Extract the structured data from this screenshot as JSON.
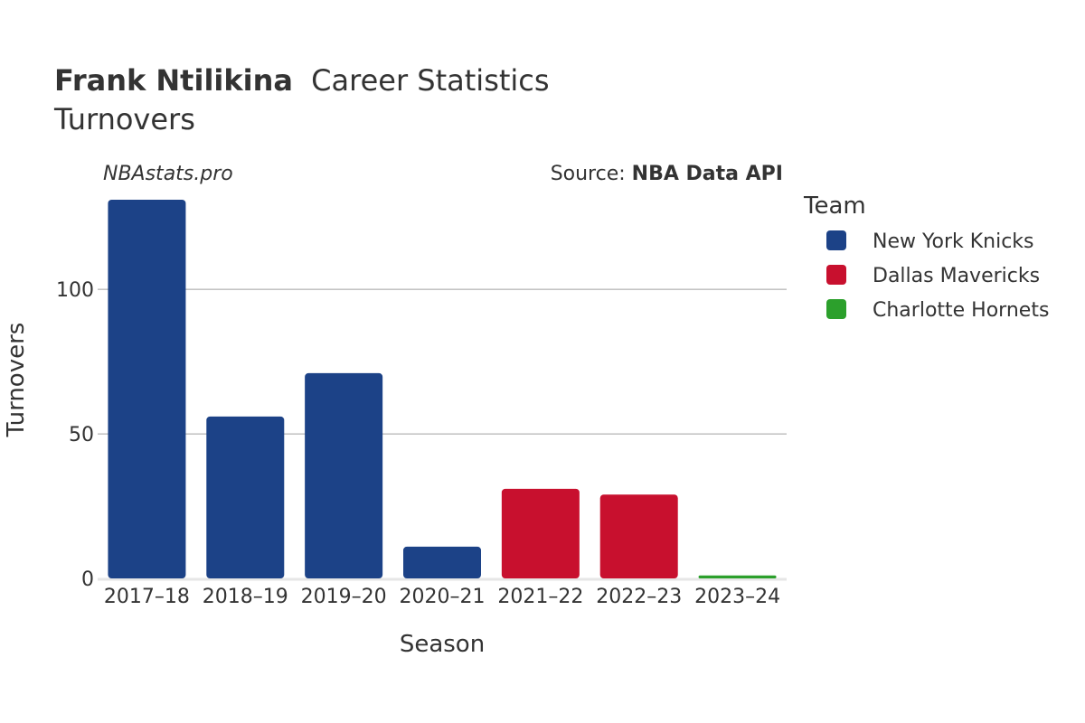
{
  "header": {
    "player_name": "Frank Ntilikina",
    "title_rest": "Career Statistics",
    "subtitle": "Turnovers"
  },
  "watermark": "NBAstats.pro",
  "source": {
    "prefix": "Source: ",
    "name": "NBA Data API"
  },
  "legend": {
    "title": "Team",
    "items": [
      {
        "name": "New York Knicks",
        "color": "#1c4287"
      },
      {
        "name": "Dallas Mavericks",
        "color": "#c8102e"
      },
      {
        "name": "Charlotte Hornets",
        "color": "#2ca02c"
      }
    ]
  },
  "chart_data": {
    "type": "bar",
    "title": "Frank Ntilikina Career Statistics",
    "subtitle": "Turnovers",
    "xlabel": "Season",
    "ylabel": "Turnovers",
    "ylim": [
      0,
      131
    ],
    "yticks": [
      0,
      50,
      100
    ],
    "grid": true,
    "legend_position": "right",
    "categories": [
      "2017–18",
      "2018–19",
      "2019–20",
      "2020–21",
      "2021–22",
      "2022–23",
      "2023–24"
    ],
    "values": [
      131,
      56,
      71,
      11,
      31,
      29,
      1
    ],
    "teams": [
      "New York Knicks",
      "New York Knicks",
      "New York Knicks",
      "New York Knicks",
      "Dallas Mavericks",
      "Dallas Mavericks",
      "Charlotte Hornets"
    ]
  }
}
